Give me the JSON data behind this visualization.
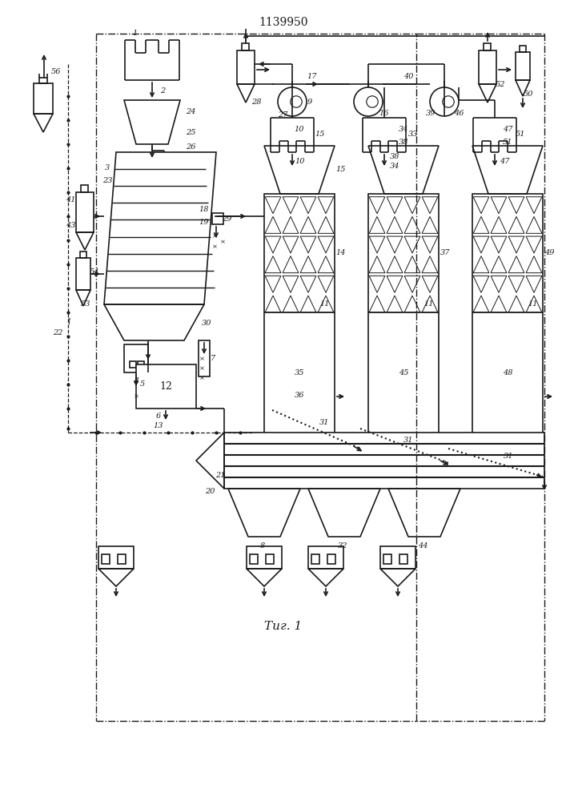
{
  "title": "1139950",
  "fig_label": "Τиг. 1",
  "bg_color": "#ffffff",
  "line_color": "#1a1a1a"
}
